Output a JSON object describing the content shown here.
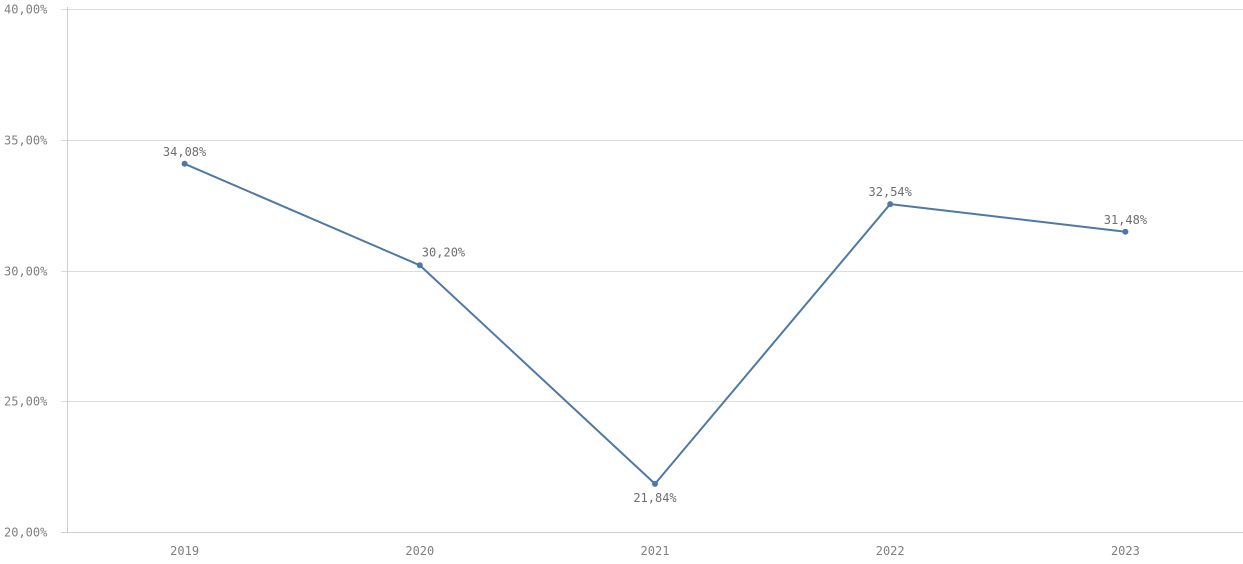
{
  "chart_data": {
    "type": "line",
    "title": "",
    "xlabel": "",
    "ylabel": "",
    "categories": [
      "2019",
      "2020",
      "2021",
      "2022",
      "2023"
    ],
    "series": [
      {
        "values": [
          34.08,
          30.2,
          21.84,
          32.54,
          31.48
        ],
        "data_labels": [
          "34,08%",
          "30,20%",
          "21,84%",
          "32,54%",
          "31,48%"
        ],
        "color": "#4e79a7"
      }
    ],
    "ylim": [
      20,
      40
    ],
    "y_ticks": [
      20,
      25,
      30,
      35,
      40
    ],
    "y_tick_labels": [
      "20,00%",
      "25,00%",
      "30,00%",
      "35,00%",
      "40,00%"
    ],
    "grid": true,
    "legend": "none",
    "colors": {
      "grid": "#dcdcdc",
      "axis_text": "#7f7f7f",
      "line": "#4e79a7"
    }
  }
}
